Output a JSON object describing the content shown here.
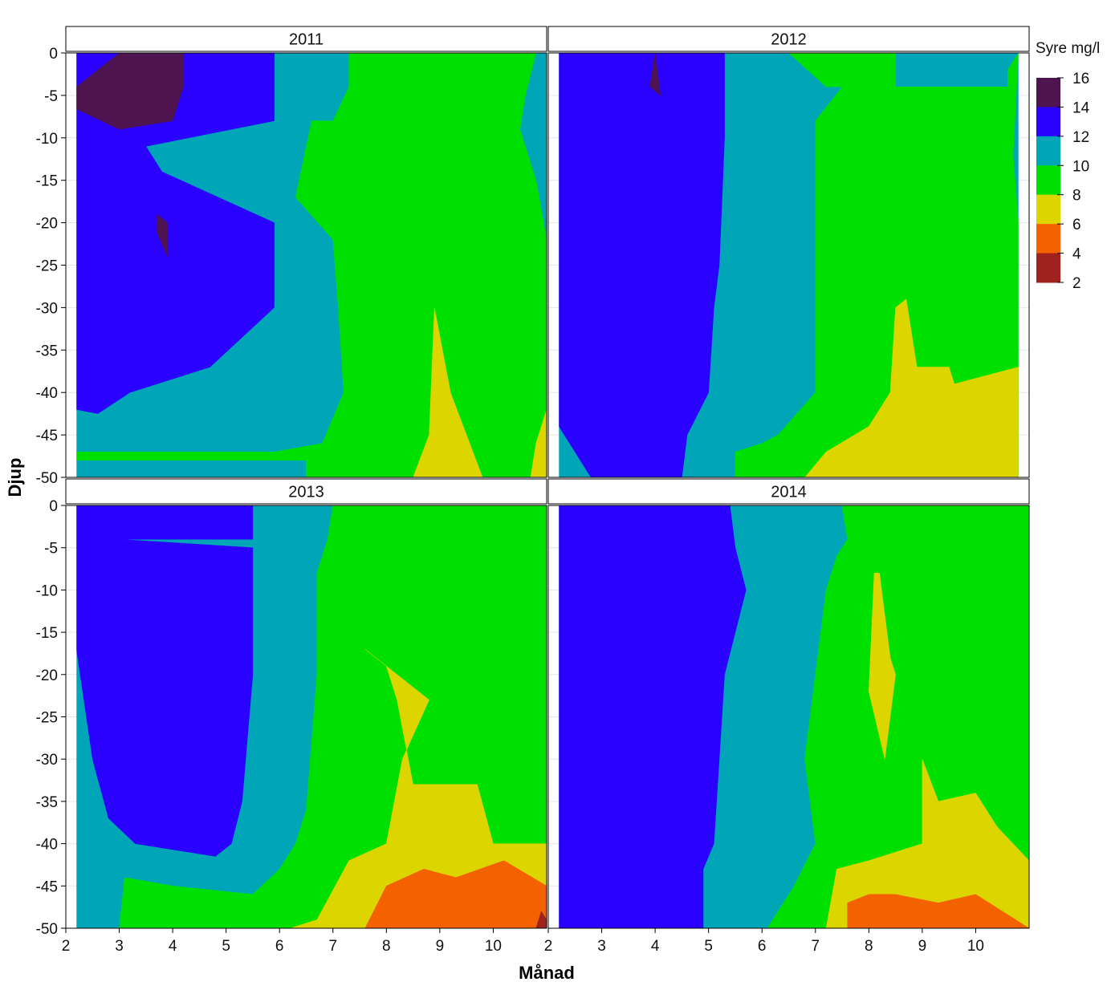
{
  "chart_data": {
    "type": "heatmap",
    "title": "",
    "xlabel": "Månad",
    "ylabel": "Djup",
    "xlim": [
      2,
      11
    ],
    "ylim": [
      -50,
      0
    ],
    "x_ticks": [
      2,
      3,
      4,
      5,
      6,
      7,
      8,
      9,
      10
    ],
    "y_ticks": [
      0,
      -5,
      -10,
      -15,
      -20,
      -25,
      -30,
      -35,
      -40,
      -45,
      -50
    ],
    "legend": {
      "title": "Syre mg/l",
      "placement": "right",
      "labels": [
        "16",
        "14",
        "12",
        "10",
        "8",
        "6",
        "4",
        "2"
      ],
      "bins": [
        {
          "range": [
            14,
            16
          ],
          "color": "#4d1450"
        },
        {
          "range": [
            12,
            14
          ],
          "color": "#2a00ff"
        },
        {
          "range": [
            10,
            12
          ],
          "color": "#00a6b8"
        },
        {
          "range": [
            8,
            10
          ],
          "color": "#00e000"
        },
        {
          "range": [
            6,
            8
          ],
          "color": "#ddd500"
        },
        {
          "range": [
            4,
            6
          ],
          "color": "#f46200"
        },
        {
          "range": [
            2,
            4
          ],
          "color": "#a0221e"
        }
      ]
    },
    "panels": [
      {
        "name": "2011",
        "x_range": [
          2.2,
          11
        ],
        "regions": [
          {
            "level": "10-12",
            "points": [
              [
                2.2,
                0
              ],
              [
                11,
                0
              ],
              [
                11,
                -50
              ],
              [
                2.2,
                -50
              ]
            ]
          },
          {
            "level": "12-14",
            "points": [
              [
                2.2,
                0
              ],
              [
                5.9,
                0
              ],
              [
                5.9,
                -8
              ],
              [
                3.5,
                -11
              ],
              [
                3.8,
                -14
              ],
              [
                5.9,
                -20
              ],
              [
                5.9,
                -30
              ],
              [
                4.7,
                -37
              ],
              [
                3.2,
                -40
              ],
              [
                2.6,
                -42.5
              ],
              [
                2.2,
                -42
              ]
            ]
          },
          {
            "level": "14-16",
            "points": [
              [
                3.0,
                0
              ],
              [
                4.2,
                0
              ],
              [
                4.2,
                -4
              ],
              [
                4.0,
                -8
              ],
              [
                3.0,
                -9
              ],
              [
                2.0,
                -6
              ],
              [
                2.2,
                -4
              ]
            ]
          },
          {
            "level": "14-16",
            "points": [
              [
                3.7,
                -19
              ],
              [
                3.9,
                -20
              ],
              [
                3.9,
                -24
              ],
              [
                3.7,
                -21
              ]
            ]
          },
          {
            "level": "8-10",
            "points": [
              [
                7.3,
                0
              ],
              [
                10.8,
                0
              ],
              [
                10.6,
                -5
              ],
              [
                10.5,
                -9
              ],
              [
                10.8,
                -15
              ],
              [
                11,
                -22
              ],
              [
                11,
                -50
              ],
              [
                6.5,
                -50
              ],
              [
                6.5,
                -48
              ],
              [
                2.2,
                -48
              ],
              [
                2.2,
                -47
              ],
              [
                3.0,
                -47
              ],
              [
                5.9,
                -47
              ],
              [
                6.8,
                -46
              ],
              [
                7.2,
                -40
              ],
              [
                7.1,
                -30
              ],
              [
                7.0,
                -22
              ],
              [
                6.3,
                -17
              ],
              [
                6.6,
                -8
              ],
              [
                7.0,
                -8
              ],
              [
                7.3,
                -4
              ]
            ]
          },
          {
            "level": "6-8",
            "points": [
              [
                8.9,
                -30
              ],
              [
                9.2,
                -40
              ],
              [
                9.8,
                -50
              ],
              [
                8.5,
                -50
              ],
              [
                8.8,
                -45
              ]
            ]
          },
          {
            "level": "6-8",
            "points": [
              [
                10.8,
                -46
              ],
              [
                11,
                -42
              ],
              [
                11,
                -50
              ],
              [
                10.7,
                -50
              ]
            ]
          }
        ]
      },
      {
        "name": "2012",
        "x_range": [
          2.2,
          10.8
        ],
        "regions": [
          {
            "level": "10-12",
            "points": [
              [
                2.2,
                0
              ],
              [
                10.8,
                0
              ],
              [
                10.8,
                -50
              ],
              [
                2.2,
                -50
              ]
            ]
          },
          {
            "level": "12-14",
            "points": [
              [
                2.2,
                0
              ],
              [
                5.3,
                0
              ],
              [
                5.3,
                -10
              ],
              [
                5.2,
                -25
              ],
              [
                5.1,
                -30
              ],
              [
                5.0,
                -40
              ],
              [
                4.6,
                -45
              ],
              [
                4.5,
                -50
              ],
              [
                2.8,
                -50
              ],
              [
                2.2,
                -44
              ]
            ]
          },
          {
            "level": "14-16",
            "points": [
              [
                4.0,
                0
              ],
              [
                4.1,
                -5
              ],
              [
                3.9,
                -4
              ]
            ]
          },
          {
            "level": "8-10",
            "points": [
              [
                6.5,
                0
              ],
              [
                8.5,
                0
              ],
              [
                8.5,
                -4
              ],
              [
                10.6,
                -4
              ],
              [
                10.6,
                -2
              ],
              [
                10.8,
                0
              ],
              [
                10.7,
                -12
              ],
              [
                10.8,
                -20
              ],
              [
                10.8,
                -50
              ],
              [
                5.5,
                -50
              ],
              [
                5.5,
                -47
              ],
              [
                6.0,
                -46
              ],
              [
                6.3,
                -45
              ],
              [
                7.0,
                -40
              ],
              [
                7.0,
                -22
              ],
              [
                7.0,
                -8
              ],
              [
                7.5,
                -4
              ],
              [
                7.2,
                -4
              ]
            ]
          },
          {
            "level": "6-8",
            "points": [
              [
                8.5,
                -30
              ],
              [
                8.7,
                -29
              ],
              [
                8.9,
                -37
              ],
              [
                9.5,
                -37
              ],
              [
                9.6,
                -39
              ],
              [
                10.8,
                -37
              ],
              [
                10.8,
                -50
              ],
              [
                6.8,
                -50
              ],
              [
                7.2,
                -47
              ],
              [
                8.0,
                -44
              ],
              [
                8.4,
                -40
              ]
            ]
          }
        ]
      },
      {
        "name": "2013",
        "x_range": [
          2.2,
          11
        ],
        "regions": [
          {
            "level": "10-12",
            "points": [
              [
                2.2,
                0
              ],
              [
                11,
                0
              ],
              [
                11,
                -50
              ],
              [
                2.2,
                -50
              ]
            ]
          },
          {
            "level": "12-14",
            "points": [
              [
                2.2,
                0
              ],
              [
                5.5,
                0
              ],
              [
                5.5,
                -4
              ],
              [
                3.0,
                -4
              ],
              [
                5.5,
                -5
              ],
              [
                5.5,
                -20
              ],
              [
                5.3,
                -35
              ],
              [
                5.1,
                -40
              ],
              [
                4.8,
                -41.5
              ],
              [
                3.3,
                -40
              ],
              [
                2.8,
                -37
              ],
              [
                2.5,
                -30
              ],
              [
                2.2,
                -17
              ]
            ]
          },
          {
            "level": "8-10",
            "points": [
              [
                7.0,
                0
              ],
              [
                11,
                0
              ],
              [
                11,
                -50
              ],
              [
                3.0,
                -50
              ],
              [
                3.1,
                -44
              ],
              [
                4.0,
                -45
              ],
              [
                5.5,
                -46
              ],
              [
                6.0,
                -43
              ],
              [
                6.3,
                -40
              ],
              [
                6.5,
                -36
              ],
              [
                6.7,
                -20
              ],
              [
                6.7,
                -8
              ],
              [
                6.9,
                -4
              ]
            ]
          },
          {
            "level": "6-8",
            "points": [
              [
                7.6,
                -17
              ],
              [
                8.0,
                -19
              ],
              [
                8.2,
                -23
              ],
              [
                8.5,
                -33
              ],
              [
                9.7,
                -33
              ],
              [
                10.0,
                -40
              ],
              [
                11,
                -40
              ],
              [
                11,
                -50
              ],
              [
                6.2,
                -50
              ],
              [
                6.7,
                -49
              ],
              [
                7.3,
                -42
              ],
              [
                8.0,
                -40
              ],
              [
                8.3,
                -30
              ],
              [
                8.8,
                -23
              ]
            ]
          },
          {
            "level": "4-6",
            "points": [
              [
                8.0,
                -45
              ],
              [
                8.7,
                -43
              ],
              [
                9.3,
                -44
              ],
              [
                10.2,
                -42
              ],
              [
                11,
                -45
              ],
              [
                11,
                -50
              ],
              [
                7.6,
                -50
              ]
            ]
          },
          {
            "level": "2-4",
            "points": [
              [
                10.9,
                -48
              ],
              [
                11,
                -49
              ],
              [
                11,
                -50
              ],
              [
                10.8,
                -50
              ]
            ]
          }
        ]
      },
      {
        "name": "2014",
        "x_range": [
          2.2,
          11
        ],
        "regions": [
          {
            "level": "10-12",
            "points": [
              [
                2.2,
                0
              ],
              [
                11,
                0
              ],
              [
                11,
                -50
              ],
              [
                2.2,
                -50
              ]
            ]
          },
          {
            "level": "12-14",
            "points": [
              [
                2.2,
                0
              ],
              [
                5.4,
                0
              ],
              [
                5.5,
                -5
              ],
              [
                5.7,
                -10
              ],
              [
                5.3,
                -20
              ],
              [
                5.2,
                -30
              ],
              [
                5.1,
                -40
              ],
              [
                4.9,
                -43
              ],
              [
                4.9,
                -50
              ],
              [
                2.2,
                -50
              ]
            ]
          },
          {
            "level": "8-10",
            "points": [
              [
                7.5,
                0
              ],
              [
                11,
                0
              ],
              [
                11,
                -50
              ],
              [
                6.1,
                -50
              ],
              [
                6.6,
                -45
              ],
              [
                7.0,
                -40
              ],
              [
                6.8,
                -30
              ],
              [
                7.0,
                -20
              ],
              [
                7.2,
                -10
              ],
              [
                7.4,
                -6
              ],
              [
                7.6,
                -4
              ]
            ]
          },
          {
            "level": "6-8",
            "points": [
              [
                8.1,
                -8
              ],
              [
                8.2,
                -8
              ],
              [
                8.4,
                -18
              ],
              [
                8.5,
                -20
              ],
              [
                8.3,
                -30
              ],
              [
                8.0,
                -22
              ]
            ]
          },
          {
            "level": "6-8",
            "points": [
              [
                9.0,
                -30
              ],
              [
                9.3,
                -35
              ],
              [
                10.0,
                -34
              ],
              [
                10.4,
                -38
              ],
              [
                11,
                -42
              ],
              [
                11,
                -50
              ],
              [
                7.2,
                -50
              ],
              [
                7.4,
                -43
              ],
              [
                8.0,
                -42
              ],
              [
                9.0,
                -40
              ]
            ]
          },
          {
            "level": "4-6",
            "points": [
              [
                8.0,
                -46
              ],
              [
                8.5,
                -46
              ],
              [
                9.3,
                -47
              ],
              [
                10.0,
                -46
              ],
              [
                11,
                -50
              ],
              [
                7.6,
                -50
              ],
              [
                7.6,
                -47
              ]
            ]
          }
        ]
      }
    ]
  }
}
